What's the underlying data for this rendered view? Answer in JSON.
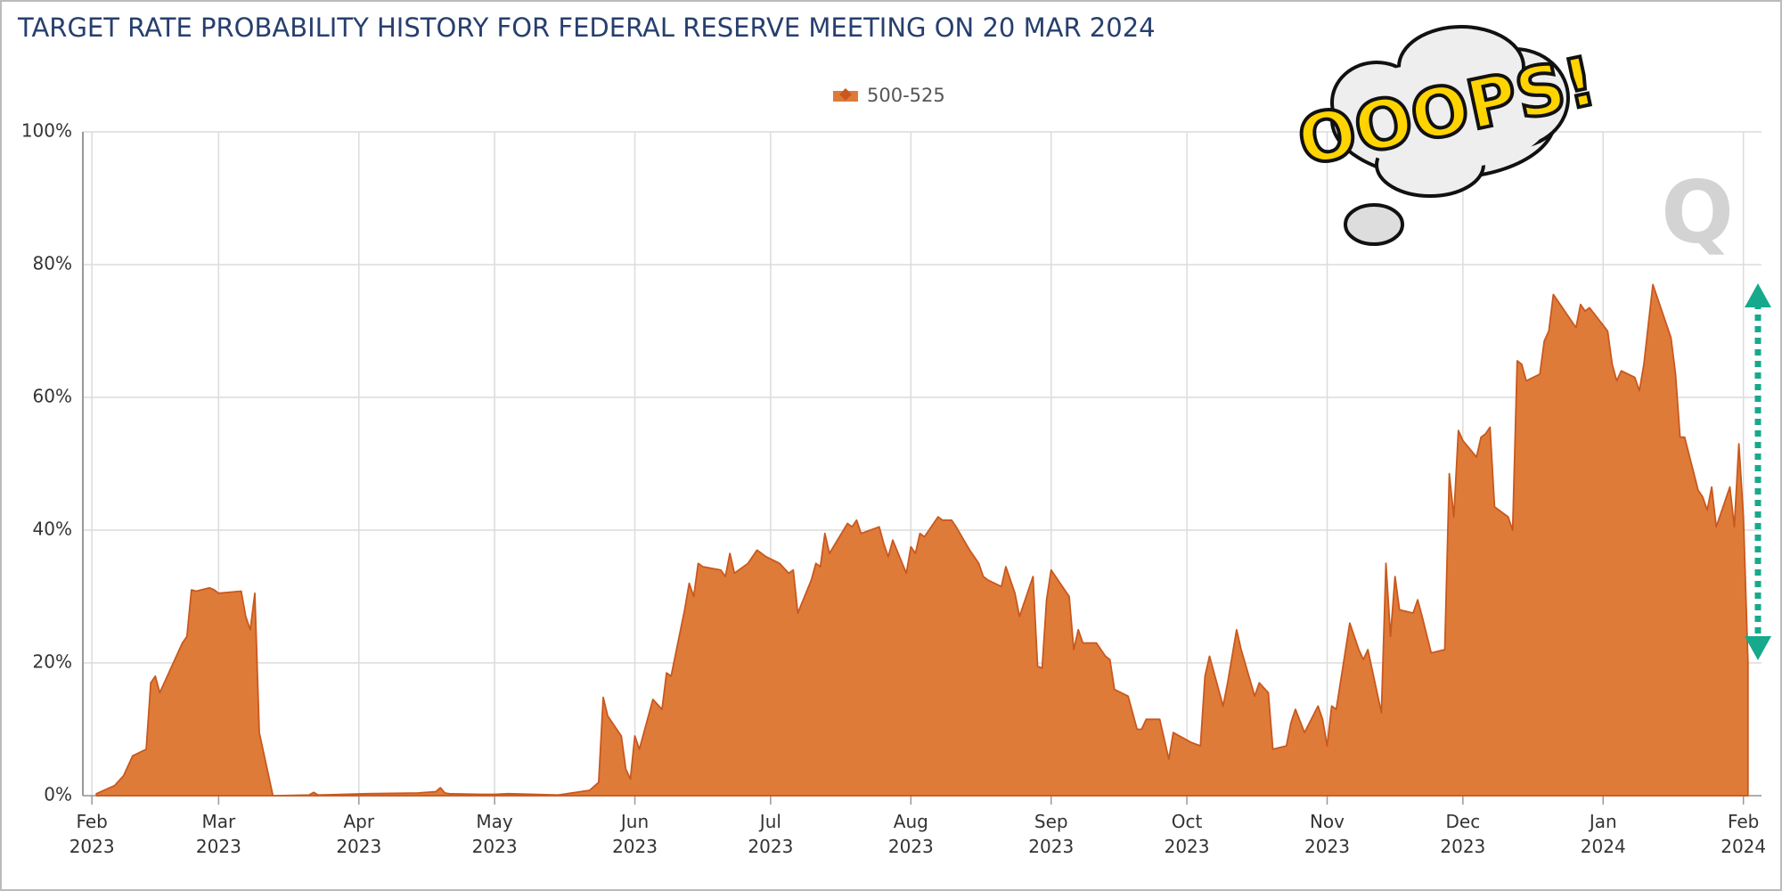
{
  "chart_data": {
    "type": "area",
    "title": "TARGET RATE PROBABILITY HISTORY FOR FEDERAL RESERVE MEETING ON 20 MAR 2024",
    "annotation": "OOOPS!",
    "watermark": "Q",
    "x": [
      "2023-02-02",
      "2023-02-06",
      "2023-02-08",
      "2023-02-10",
      "2023-02-13",
      "2023-02-14",
      "2023-02-15",
      "2023-02-16",
      "2023-02-21",
      "2023-02-22",
      "2023-02-23",
      "2023-02-24",
      "2023-02-27",
      "2023-02-28",
      "2023-03-01",
      "2023-03-06",
      "2023-03-07",
      "2023-03-08",
      "2023-03-09",
      "2023-03-10",
      "2023-03-13",
      "2023-03-14",
      "2023-03-21",
      "2023-03-22",
      "2023-03-23",
      "2023-04-03",
      "2023-04-14",
      "2023-04-18",
      "2023-04-19",
      "2023-04-20",
      "2023-04-21",
      "2023-04-28",
      "2023-05-01",
      "2023-05-04",
      "2023-05-15",
      "2023-05-17",
      "2023-05-22",
      "2023-05-24",
      "2023-05-25",
      "2023-05-26",
      "2023-05-29",
      "2023-05-30",
      "2023-05-31",
      "2023-06-01",
      "2023-06-02",
      "2023-06-05",
      "2023-06-07",
      "2023-06-08",
      "2023-06-09",
      "2023-06-12",
      "2023-06-13",
      "2023-06-14",
      "2023-06-15",
      "2023-06-16",
      "2023-06-20",
      "2023-06-21",
      "2023-06-22",
      "2023-06-23",
      "2023-06-26",
      "2023-06-28",
      "2023-06-30",
      "2023-07-03",
      "2023-07-05",
      "2023-07-06",
      "2023-07-07",
      "2023-07-10",
      "2023-07-11",
      "2023-07-12",
      "2023-07-13",
      "2023-07-14",
      "2023-07-18",
      "2023-07-19",
      "2023-07-20",
      "2023-07-21",
      "2023-07-25",
      "2023-07-26",
      "2023-07-27",
      "2023-07-28",
      "2023-07-31",
      "2023-08-01",
      "2023-08-02",
      "2023-08-03",
      "2023-08-04",
      "2023-08-07",
      "2023-08-08",
      "2023-08-10",
      "2023-08-11",
      "2023-08-14",
      "2023-08-16",
      "2023-08-17",
      "2023-08-18",
      "2023-08-21",
      "2023-08-22",
      "2023-08-23",
      "2023-08-24",
      "2023-08-25",
      "2023-08-28",
      "2023-08-29",
      "2023-08-30",
      "2023-08-31",
      "2023-09-01",
      "2023-09-05",
      "2023-09-06",
      "2023-09-07",
      "2023-09-08",
      "2023-09-11",
      "2023-09-13",
      "2023-09-14",
      "2023-09-15",
      "2023-09-18",
      "2023-09-20",
      "2023-09-21",
      "2023-09-22",
      "2023-09-25",
      "2023-09-27",
      "2023-09-28",
      "2023-10-02",
      "2023-10-04",
      "2023-10-05",
      "2023-10-06",
      "2023-10-09",
      "2023-10-10",
      "2023-10-12",
      "2023-10-13",
      "2023-10-16",
      "2023-10-17",
      "2023-10-19",
      "2023-10-20",
      "2023-10-23",
      "2023-10-24",
      "2023-10-25",
      "2023-10-27",
      "2023-10-30",
      "2023-10-31",
      "2023-11-01",
      "2023-11-02",
      "2023-11-03",
      "2023-11-06",
      "2023-11-08",
      "2023-11-09",
      "2023-11-10",
      "2023-11-13",
      "2023-11-14",
      "2023-11-15",
      "2023-11-16",
      "2023-11-17",
      "2023-11-20",
      "2023-11-21",
      "2023-11-22",
      "2023-11-24",
      "2023-11-27",
      "2023-11-28",
      "2023-11-29",
      "2023-11-30",
      "2023-12-01",
      "2023-12-04",
      "2023-12-05",
      "2023-12-06",
      "2023-12-07",
      "2023-12-08",
      "2023-12-11",
      "2023-12-12",
      "2023-12-13",
      "2023-12-14",
      "2023-12-15",
      "2023-12-18",
      "2023-12-19",
      "2023-12-20",
      "2023-12-21",
      "2023-12-26",
      "2023-12-27",
      "2023-12-28",
      "2023-12-29",
      "2024-01-02",
      "2024-01-03",
      "2024-01-04",
      "2024-01-05",
      "2024-01-08",
      "2024-01-09",
      "2024-01-10",
      "2024-01-11",
      "2024-01-12",
      "2024-01-16",
      "2024-01-17",
      "2024-01-18",
      "2024-01-19",
      "2024-01-22",
      "2024-01-23",
      "2024-01-24",
      "2024-01-25",
      "2024-01-26",
      "2024-01-29",
      "2024-01-30",
      "2024-01-31",
      "2024-02-01",
      "2024-02-02"
    ],
    "series": [
      {
        "name": "500-525",
        "color": "#df7b39",
        "line_color": "#c9581e",
        "values": [
          0.3,
          1.5,
          3,
          6,
          7,
          17,
          18,
          15.5,
          23,
          24,
          31,
          30.8,
          31.3,
          31,
          30.5,
          30.8,
          27,
          25,
          30.5,
          9.5,
          0,
          0,
          0.1,
          0.5,
          0.1,
          0.3,
          0.4,
          0.6,
          1.2,
          0.4,
          0.3,
          0.2,
          0.2,
          0.3,
          0.1,
          0.3,
          0.8,
          2,
          14.8,
          12,
          9,
          4,
          2.5,
          9,
          7,
          14.5,
          13,
          18.5,
          18,
          28,
          32,
          30,
          35,
          34.5,
          34,
          33,
          36.5,
          33.5,
          35,
          37,
          36,
          35,
          33.5,
          34,
          27.5,
          32.5,
          35,
          34.5,
          39.5,
          36.5,
          41,
          40.5,
          41.5,
          39.5,
          40.5,
          38,
          36,
          38.5,
          33.5,
          37.5,
          36.5,
          39.5,
          39,
          42,
          41.5,
          41.5,
          40.5,
          37,
          35,
          33,
          32.5,
          31.5,
          34.5,
          32.5,
          30.5,
          27,
          33,
          19.5,
          19.2,
          29.5,
          34,
          30,
          22,
          25,
          23,
          23,
          21,
          20.5,
          16,
          15,
          10,
          10,
          11.5,
          11.5,
          5.5,
          9.5,
          8,
          7.5,
          18,
          21,
          13.5,
          17,
          25,
          22,
          15,
          17,
          15.5,
          7,
          7.5,
          11,
          13,
          9.5,
          13.5,
          11.5,
          7.5,
          13.5,
          13,
          26,
          22,
          20.5,
          22,
          12.5,
          35,
          24,
          33,
          28,
          27.5,
          29.5,
          27,
          21.5,
          22,
          48.5,
          42,
          55,
          53.5,
          51,
          54,
          54.5,
          55.5,
          43.5,
          42,
          40,
          65.5,
          65,
          62.5,
          63.5,
          68.5,
          70,
          75.5,
          70.5,
          74,
          73,
          73.5,
          70,
          65,
          62.5,
          64,
          63,
          61,
          65,
          71,
          77,
          69,
          63.5,
          54,
          54,
          46,
          45,
          43,
          46.5,
          40.5,
          46.5,
          40.5,
          53,
          42,
          20
        ]
      }
    ],
    "xlim": [
      "2023-01-30",
      "2024-02-05"
    ],
    "xticks": [
      {
        "value": "2023-02-01",
        "label": "Feb 2023"
      },
      {
        "value": "2023-03-01",
        "label": "Mar 2023"
      },
      {
        "value": "2023-04-01",
        "label": "Apr 2023"
      },
      {
        "value": "2023-05-01",
        "label": "May 2023"
      },
      {
        "value": "2023-06-01",
        "label": "Jun 2023"
      },
      {
        "value": "2023-07-01",
        "label": "Jul 2023"
      },
      {
        "value": "2023-08-01",
        "label": "Aug 2023"
      },
      {
        "value": "2023-09-01",
        "label": "Sep 2023"
      },
      {
        "value": "2023-10-01",
        "label": "Oct 2023"
      },
      {
        "value": "2023-11-01",
        "label": "Nov 2023"
      },
      {
        "value": "2023-12-01",
        "label": "Dec 2023"
      },
      {
        "value": "2024-01-01",
        "label": "Jan 2024"
      },
      {
        "value": "2024-02-01",
        "label": "Feb 2024"
      }
    ],
    "ylim": [
      0,
      100
    ],
    "yticks": [
      {
        "value": 0,
        "label": "0%"
      },
      {
        "value": 20,
        "label": "20%"
      },
      {
        "value": 40,
        "label": "40%"
      },
      {
        "value": 60,
        "label": "60%"
      },
      {
        "value": 80,
        "label": "80%"
      },
      {
        "value": 100,
        "label": "100%"
      }
    ],
    "grid": true,
    "legend": "top"
  }
}
